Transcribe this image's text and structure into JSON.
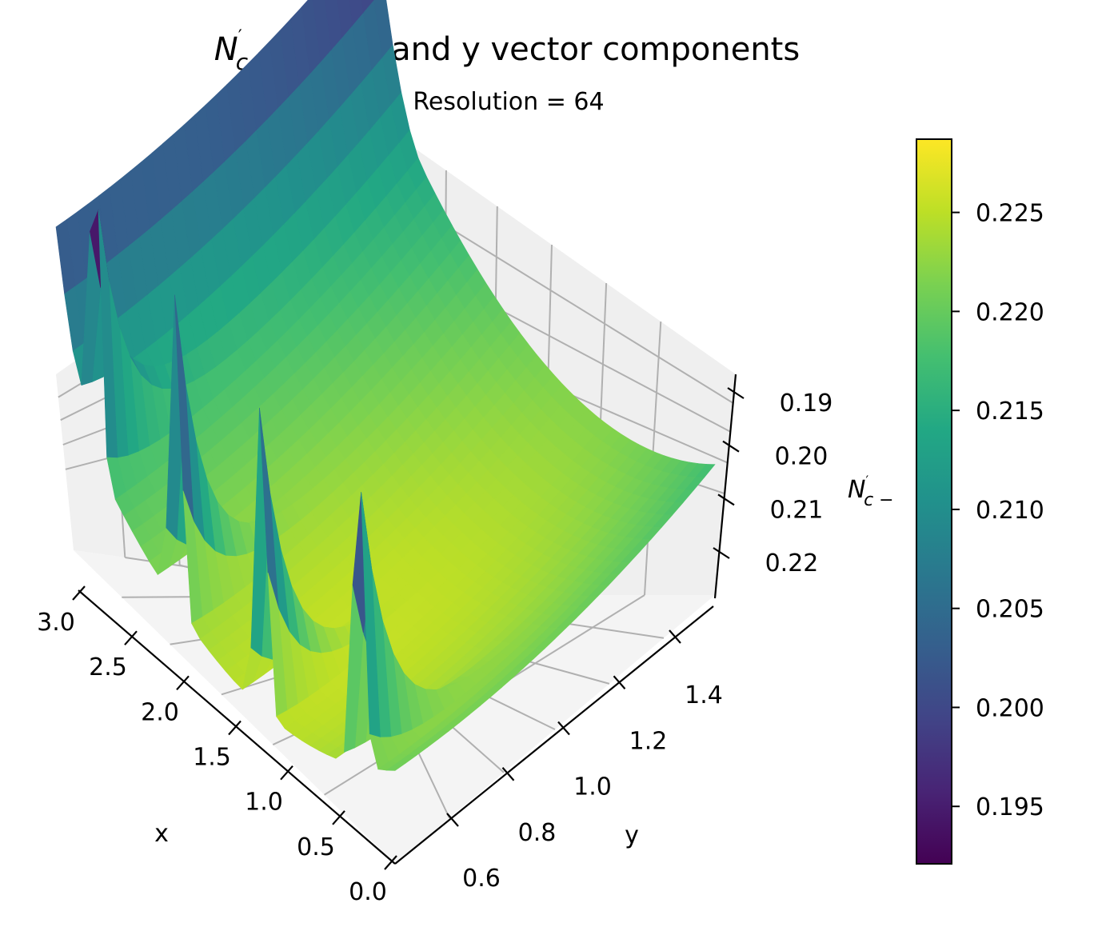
{
  "chart_data": {
    "type": "surface3d",
    "title": {
      "main": "N",
      "sup": "′",
      "sub": "c −",
      "rest": " with x and y vector components"
    },
    "subtitle": "Resolution = 64",
    "xlabel": "x",
    "ylabel": "y",
    "zlabel": {
      "main": "N",
      "sup": "′",
      "sub": "c −"
    },
    "x_ticks": [
      "3.0",
      "2.5",
      "2.0",
      "1.5",
      "1.0",
      "0.5",
      "0.0"
    ],
    "y_ticks": [
      "0.6",
      "0.8",
      "1.0",
      "1.2",
      "1.4"
    ],
    "z_ticks": [
      "0.19",
      "0.20",
      "0.21",
      "0.22"
    ],
    "colorbar": {
      "colormap": "viridis",
      "ticks": [
        "0.195",
        "0.200",
        "0.205",
        "0.210",
        "0.215",
        "0.220",
        "0.225"
      ],
      "range": [
        0.1921,
        0.2287
      ]
    },
    "xlim": [
      0.0,
      3.14
    ],
    "ylim": [
      0.5,
      1.5
    ],
    "zlim": [
      0.19,
      0.228
    ],
    "z_axis_inverted": true
  }
}
